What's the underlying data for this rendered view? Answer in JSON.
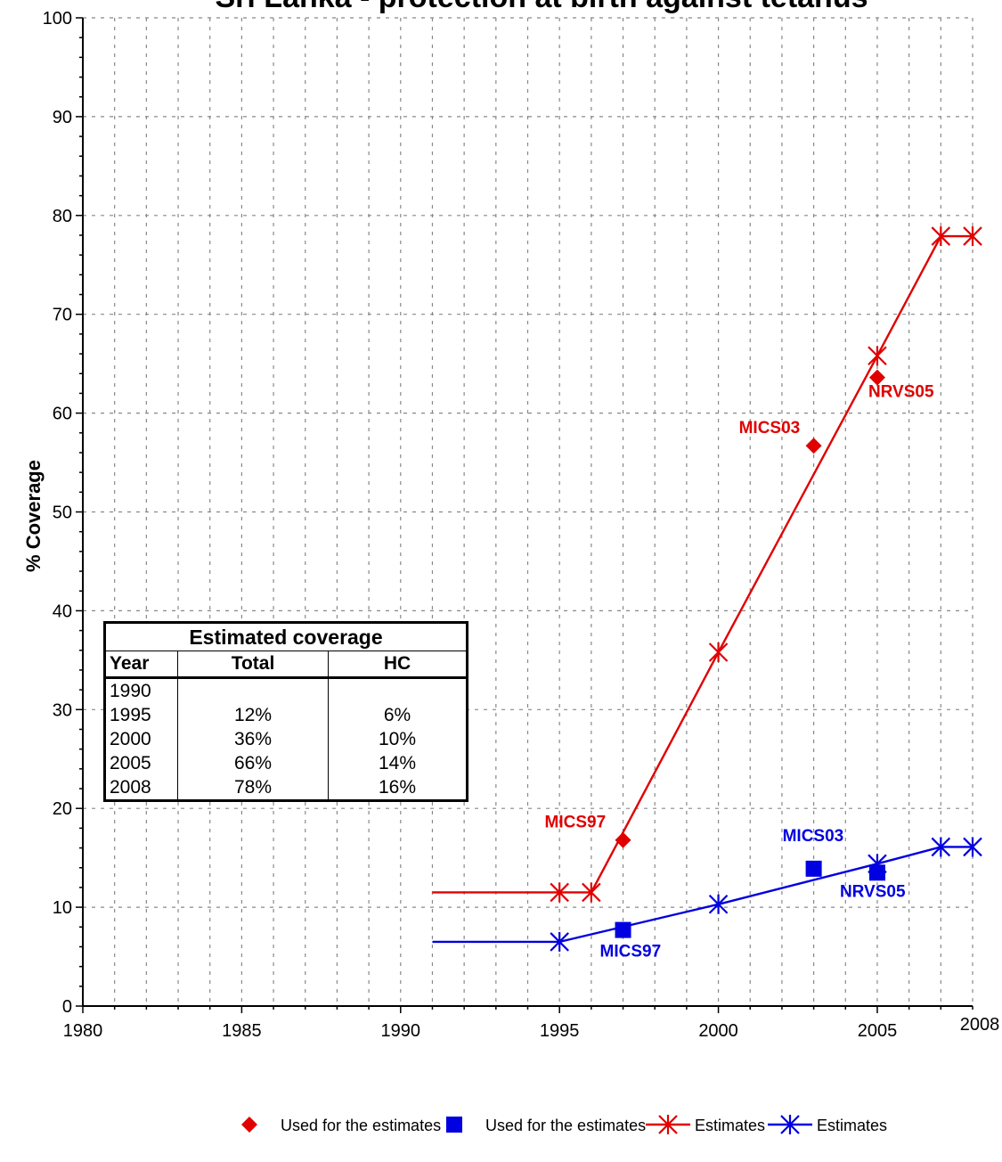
{
  "chart_data": {
    "type": "line",
    "title": "Sri Lanka - protection at birth against tetanus",
    "ylabel": "% Coverage",
    "xlabel": "",
    "xlim": [
      1980,
      2008
    ],
    "ylim": [
      0,
      100
    ],
    "x_ticks": [
      1980,
      1985,
      1990,
      1995,
      2000,
      2005,
      2008
    ],
    "y_ticks": [
      0,
      10,
      20,
      30,
      40,
      50,
      60,
      70,
      80,
      90,
      100
    ],
    "grid": true,
    "legend_position": "bottom",
    "series": [
      {
        "name": "Used for the estimates",
        "kind": "survey_points",
        "marker": "diamond",
        "color": "#E00000",
        "points": [
          {
            "x": 1997,
            "y": 16.8,
            "label": "MICS97"
          },
          {
            "x": 2003,
            "y": 56.7,
            "label": "MICS03"
          },
          {
            "x": 2005,
            "y": 63.6,
            "label": "NRVS05"
          }
        ]
      },
      {
        "name": "Used for the estimates",
        "kind": "survey_points",
        "marker": "square",
        "color": "#0000E0",
        "points": [
          {
            "x": 1997,
            "y": 7.7,
            "label": "MICS97"
          },
          {
            "x": 2003,
            "y": 13.9,
            "label": "MICS03"
          },
          {
            "x": 2005,
            "y": 13.5,
            "label": "NRVS05"
          }
        ]
      },
      {
        "name": "Estimates",
        "kind": "estimate_line",
        "marker": "star",
        "color": "#E00000",
        "line_start": [
          1991,
          11.5
        ],
        "points": [
          {
            "x": 1995,
            "y": 11.5
          },
          {
            "x": 1996,
            "y": 11.5
          },
          {
            "x": 2000,
            "y": 35.8
          },
          {
            "x": 2005,
            "y": 65.8
          },
          {
            "x": 2007,
            "y": 77.9
          },
          {
            "x": 2008,
            "y": 77.9
          }
        ]
      },
      {
        "name": "Estimates",
        "kind": "estimate_line",
        "marker": "star",
        "color": "#0000E0",
        "line_start": [
          1991,
          6.5
        ],
        "points": [
          {
            "x": 1995,
            "y": 6.5
          },
          {
            "x": 2000,
            "y": 10.3
          },
          {
            "x": 2005,
            "y": 14.4
          },
          {
            "x": 2007,
            "y": 16.1
          },
          {
            "x": 2008,
            "y": 16.1
          }
        ]
      }
    ],
    "table": {
      "title": "Estimated coverage",
      "columns": [
        "Year",
        "Total",
        "HC"
      ],
      "rows": [
        [
          "1990",
          "",
          ""
        ],
        [
          "1995",
          "12%",
          "6%"
        ],
        [
          "2000",
          "36%",
          "10%"
        ],
        [
          "2005",
          "66%",
          "14%"
        ],
        [
          "2008",
          "78%",
          "16%"
        ]
      ]
    }
  }
}
